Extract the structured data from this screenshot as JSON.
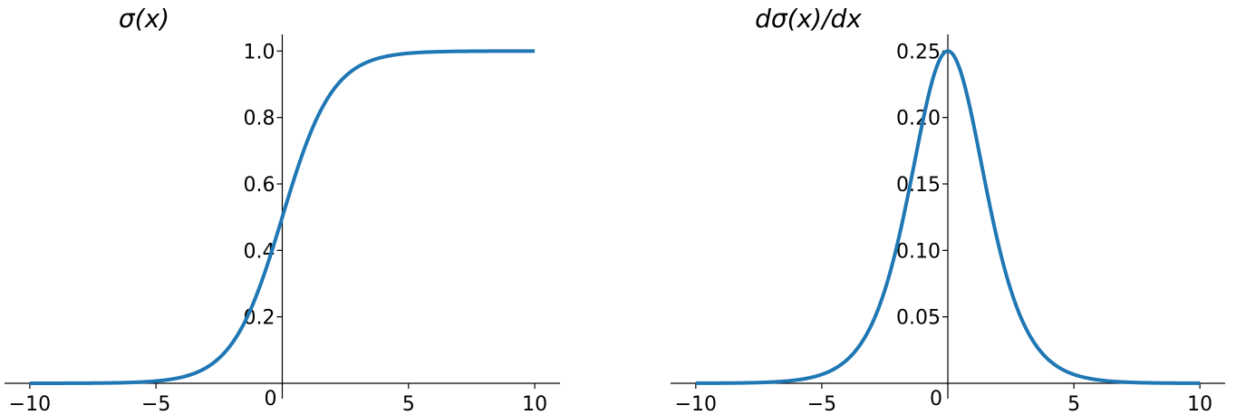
{
  "chart_data": [
    {
      "type": "line",
      "title": "σ(x)",
      "function": "sigmoid",
      "xlim": [
        -11,
        11
      ],
      "ylim": [
        0,
        1.05
      ],
      "x_range": [
        -10,
        10
      ],
      "x_ticks": [
        -10,
        -5,
        0,
        5,
        10
      ],
      "x_tick_labels": [
        "−10",
        "−5",
        "0",
        "5",
        "10"
      ],
      "y_ticks": [
        0.2,
        0.4,
        0.6,
        0.8,
        1.0
      ],
      "y_tick_labels": [
        "0.2",
        "0.4",
        "0.6",
        "0.8",
        "1.0"
      ],
      "x": [
        -10,
        -8,
        -6,
        -4,
        -3,
        -2,
        -1,
        0,
        1,
        2,
        3,
        4,
        6,
        8,
        10
      ],
      "y": [
        4.54e-05,
        0.000335,
        0.00247,
        0.018,
        0.0474,
        0.119,
        0.269,
        0.5,
        0.731,
        0.881,
        0.953,
        0.982,
        0.9975,
        0.99966,
        0.99995
      ],
      "spines": "centered at origin",
      "grid": false,
      "color": "#1f77b4"
    },
    {
      "type": "line",
      "title": "dσ(x)/dx",
      "function": "sigmoid-derivative",
      "xlim": [
        -11,
        11
      ],
      "ylim": [
        0,
        0.2625
      ],
      "x_range": [
        -10,
        10
      ],
      "x_ticks": [
        -10,
        -5,
        0,
        5,
        10
      ],
      "x_tick_labels": [
        "−10",
        "−5",
        "0",
        "5",
        "10"
      ],
      "y_ticks": [
        0.05,
        0.1,
        0.15,
        0.2,
        0.25
      ],
      "y_tick_labels": [
        "0.05",
        "0.10",
        "0.15",
        "0.20",
        "0.25"
      ],
      "x": [
        -10,
        -8,
        -6,
        -4,
        -3,
        -2,
        -1,
        0,
        1,
        2,
        3,
        4,
        6,
        8,
        10
      ],
      "y": [
        4.54e-05,
        0.000335,
        0.00247,
        0.0177,
        0.0452,
        0.105,
        0.197,
        0.25,
        0.197,
        0.105,
        0.0452,
        0.0177,
        0.00247,
        0.000335,
        4.54e-05
      ],
      "spines": "centered at origin",
      "grid": false,
      "color": "#1f77b4"
    }
  ]
}
